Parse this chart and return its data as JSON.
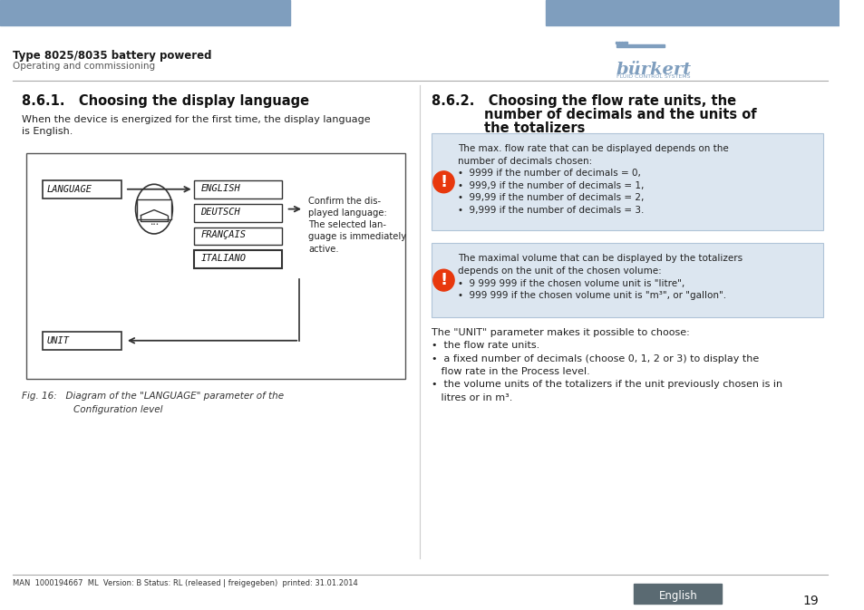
{
  "bg_color": "#ffffff",
  "header_bar_color": "#7f9ebe",
  "header_text_bold": "Type 8025/8035 battery powered",
  "header_text_sub": "Operating and commissioning",
  "footer_text": "MAN  1000194667  ML  Version: B Status: RL (released | freigegeben)  printed: 31.01.2014",
  "footer_lang_bg": "#5a6a72",
  "footer_lang_text": "English",
  "page_number": "19",
  "section1_title": "8.6.1.   Choosing the display language",
  "section1_body1": "When the device is energized for the first time, the display language\nis English.",
  "info_box_bg": "#dce6f0",
  "info_box_border": "#b0c4d8",
  "warning_icon_color": "#e8380d"
}
